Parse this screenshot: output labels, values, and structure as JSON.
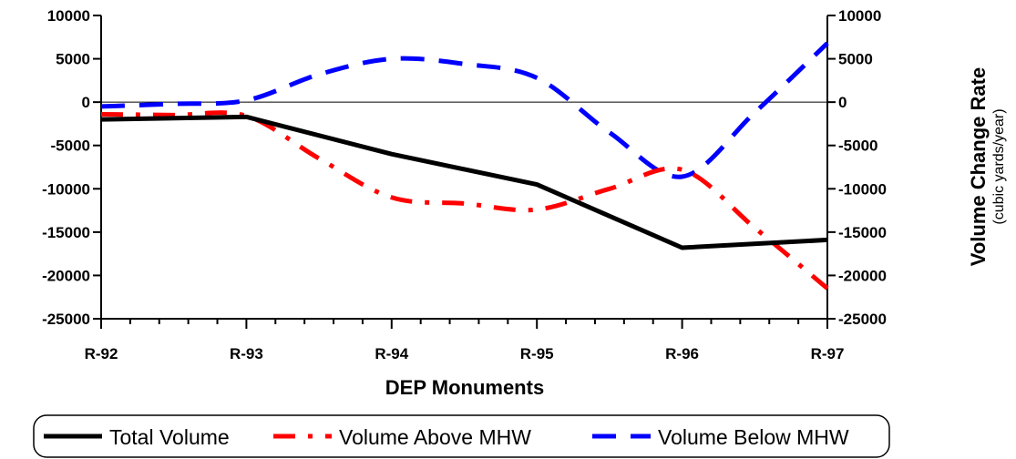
{
  "chart_data": {
    "type": "line",
    "xlabel": "DEP Monuments",
    "ylabel_right": "Volume Change Rate",
    "ylabel_right_sub": "(cubic yards/year)",
    "categories": [
      "R-92",
      "R-93",
      "R-94",
      "R-95",
      "R-96",
      "R-97"
    ],
    "ylim": [
      -25000,
      10000
    ],
    "yticks": [
      10000,
      5000,
      0,
      -5000,
      -10000,
      -15000,
      -20000,
      -25000
    ],
    "legend_position": "bottom",
    "zero_line": true,
    "grid": false,
    "series": [
      {
        "name": "Total Volume",
        "color": "#000000",
        "dash": "solid",
        "points": [
          [
            0,
            -2000
          ],
          [
            1,
            -1700
          ],
          [
            2,
            -6000
          ],
          [
            3,
            -9500
          ],
          [
            4,
            -16800
          ],
          [
            5,
            -15900
          ]
        ]
      },
      {
        "name": "Volume Above MHW",
        "color": "#ff0000",
        "dash": "dash-dot",
        "points": [
          [
            0,
            -1400
          ],
          [
            0.5,
            -1500
          ],
          [
            1,
            -1600
          ],
          [
            1.5,
            -6500
          ],
          [
            2,
            -11000
          ],
          [
            2.5,
            -11700
          ],
          [
            3,
            -12400
          ],
          [
            3.5,
            -10000
          ],
          [
            4,
            -7800
          ],
          [
            4.5,
            -14500
          ],
          [
            5,
            -21500
          ]
        ]
      },
      {
        "name": "Volume Below MHW",
        "color": "#0000ff",
        "dash": "dash",
        "points": [
          [
            0,
            -500
          ],
          [
            0.5,
            -200
          ],
          [
            1,
            200
          ],
          [
            1.5,
            3200
          ],
          [
            2,
            5000
          ],
          [
            2.5,
            4400
          ],
          [
            3,
            2800
          ],
          [
            3.5,
            -3500
          ],
          [
            4,
            -8600
          ],
          [
            4.5,
            -1200
          ],
          [
            5,
            6800
          ]
        ]
      }
    ]
  }
}
